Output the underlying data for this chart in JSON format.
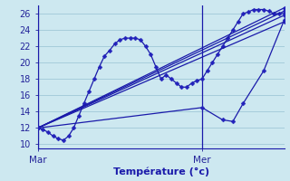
{
  "background_color": "#cde8f0",
  "grid_color": "#a0c8d8",
  "line_color": "#1a1aaa",
  "marker_color": "#2222bb",
  "xlabel": "Température (°c)",
  "xlabel_color": "#1a1aaa",
  "tick_label_color": "#222299",
  "xlim": [
    0,
    48
  ],
  "ylim": [
    9.5,
    27
  ],
  "yticks": [
    10,
    12,
    14,
    16,
    18,
    20,
    22,
    24,
    26
  ],
  "xticklabels_pos": [
    0,
    32
  ],
  "xticklabels_text": [
    "Mar",
    "Mer"
  ],
  "vlines": [
    0,
    32
  ],
  "series": [
    {
      "x": [
        0,
        1,
        2,
        3,
        4,
        5,
        6,
        7,
        8,
        9,
        10,
        11,
        12,
        13,
        14,
        15,
        16,
        17,
        18,
        19,
        20,
        21,
        22,
        23,
        24,
        25,
        26,
        27,
        28,
        29,
        30,
        31,
        32,
        33,
        34,
        35,
        36,
        37,
        38,
        39,
        40,
        41,
        42,
        43,
        44,
        45,
        46,
        47,
        48
      ],
      "y": [
        12.0,
        11.8,
        11.5,
        11.0,
        10.7,
        10.5,
        11.0,
        12.0,
        13.5,
        15.0,
        16.5,
        18.0,
        19.5,
        20.8,
        21.5,
        22.3,
        22.8,
        23.0,
        23.0,
        23.0,
        22.8,
        22.0,
        21.0,
        19.5,
        18.0,
        18.5,
        18.0,
        17.5,
        17.0,
        17.0,
        17.5,
        17.8,
        18.0,
        19.0,
        20.0,
        21.0,
        22.0,
        23.0,
        24.0,
        25.0,
        26.0,
        26.2,
        26.5,
        26.5,
        26.5,
        26.3,
        26.0,
        26.0,
        26.0
      ]
    },
    {
      "x": [
        0,
        48
      ],
      "y": [
        12.0,
        25.0
      ]
    },
    {
      "x": [
        0,
        48
      ],
      "y": [
        12.0,
        25.8
      ]
    },
    {
      "x": [
        0,
        48
      ],
      "y": [
        12.0,
        26.3
      ]
    },
    {
      "x": [
        0,
        48
      ],
      "y": [
        12.0,
        26.7
      ]
    },
    {
      "x": [
        0,
        32,
        36,
        38,
        40,
        44,
        48
      ],
      "y": [
        12.0,
        14.5,
        13.0,
        12.8,
        15.0,
        19.0,
        25.2
      ]
    }
  ]
}
